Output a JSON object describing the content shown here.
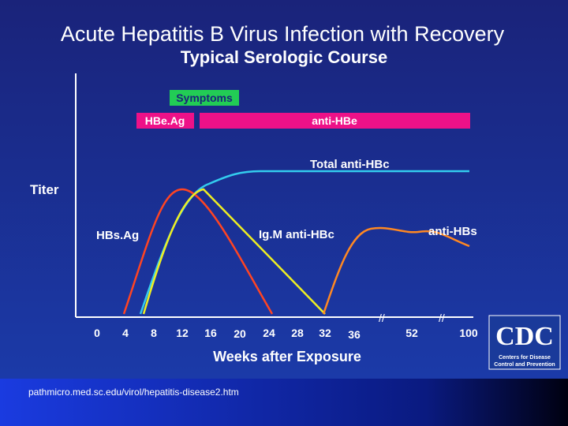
{
  "title": "Acute Hepatitis B Virus Infection with Recovery",
  "subtitle": "Typical Serologic Course",
  "y_label": "Titer",
  "x_label": "Weeks after Exposure",
  "x_ticks": [
    0,
    4,
    8,
    12,
    16,
    20,
    24,
    28,
    32,
    36,
    52,
    100
  ],
  "bars": {
    "symptoms": "Symptoms",
    "hbeag": "HBe.Ag",
    "anti_hbe": "anti-HBe"
  },
  "curves": {
    "total_anti_hbc": "Total anti-HBc",
    "hbsag": "HBs.Ag",
    "igm_anti_hbc": "Ig.M anti-HBc",
    "anti_hbs": "anti-HBs"
  },
  "source": "pathmicro.med.sc.edu/virol/hepatitis-disease2.htm",
  "logo": {
    "name": "CDC",
    "caption_1": "Centers for Disease",
    "caption_2": "Control and Prevention"
  }
}
